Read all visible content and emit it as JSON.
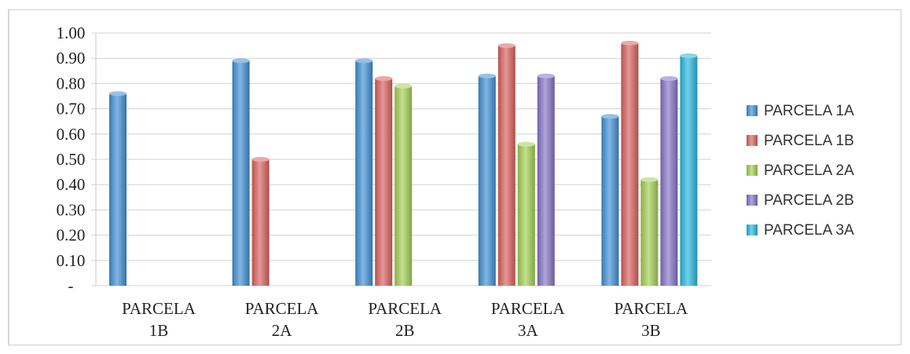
{
  "chart_data": {
    "type": "bar",
    "title": "",
    "xlabel": "",
    "ylabel": "",
    "ylim": [
      0,
      1.0
    ],
    "ytick_labels": [
      "-",
      "0.10",
      "0.20",
      "0.30",
      "0.40",
      "0.50",
      "0.60",
      "0.70",
      "0.80",
      "0.90",
      "1.00"
    ],
    "grid": true,
    "legend_position": "right",
    "categories": [
      [
        "PARCELA",
        "1B"
      ],
      [
        "PARCELA",
        "2A"
      ],
      [
        "PARCELA",
        "2B"
      ],
      [
        "PARCELA",
        "3A"
      ],
      [
        "PARCELA",
        "3B"
      ]
    ],
    "series": [
      {
        "name": "PARCELA 1A",
        "color": "#3f8fd4",
        "values": [
          0.76,
          0.89,
          0.89,
          0.83,
          0.67
        ]
      },
      {
        "name": "PARCELA 1B",
        "color": "#d9615e",
        "values": [
          null,
          0.5,
          0.82,
          0.95,
          0.96
        ]
      },
      {
        "name": "PARCELA 2A",
        "color": "#a3cf52",
        "values": [
          null,
          null,
          0.79,
          0.56,
          0.42
        ]
      },
      {
        "name": "PARCELA 2B",
        "color": "#8573c6",
        "values": [
          null,
          null,
          null,
          0.83,
          0.82
        ]
      },
      {
        "name": "PARCELA 3A",
        "color": "#27b7df",
        "values": [
          null,
          null,
          null,
          null,
          0.91
        ]
      }
    ]
  }
}
